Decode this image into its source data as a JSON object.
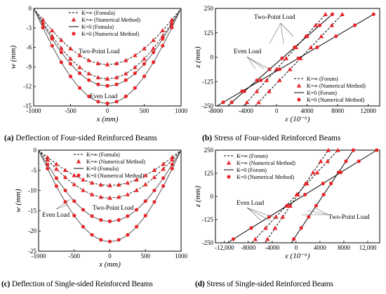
{
  "panels": [
    {
      "caption_letter": "(a)",
      "caption_text": " Deflection of Four-sided Reinforced Beams",
      "chart": "deflection",
      "xlabel": "x (mm)",
      "ylabel": "w (mm)",
      "xlim": [
        -1000,
        1000
      ],
      "ylim": [
        -15,
        0
      ],
      "xticks": [
        -1000,
        -500,
        0,
        500,
        1000
      ],
      "xticklabels": [
        "-1000",
        "-500",
        "0",
        "500",
        "1000"
      ],
      "yticks": [
        0,
        -3,
        -6,
        -9,
        -12,
        -15
      ],
      "yticklabels": [
        "0",
        "-3",
        "-6",
        "-9",
        "-12",
        "-15"
      ],
      "legend": [
        "K=∞ (Fomula)",
        "K=∞ (Numerical Method)",
        "K=0 (Fomula)",
        "K=0 (Numerical Method)"
      ],
      "annotations": [
        "Two-Point Load",
        "Even Load"
      ],
      "series": [
        {
          "stiffness": "inf",
          "method": "formula",
          "midspan": -8.6
        },
        {
          "stiffness": "inf",
          "method": "formula",
          "midspan": -10.8
        },
        {
          "stiffness": "0",
          "method": "formula",
          "midspan": -11.9
        },
        {
          "stiffness": "0",
          "method": "formula",
          "midspan": -14.6
        }
      ]
    },
    {
      "caption_letter": "(b)",
      "caption_text": " Stress of Four-sided Reinforced Beams",
      "chart": "stress",
      "xlabel": "ε (10⁻⁶)",
      "ylabel": "z (mm)",
      "xlim": [
        -8000,
        13500
      ],
      "ylim": [
        -250,
        250
      ],
      "xticks": [
        -8000,
        -4000,
        0,
        4000,
        8000,
        12000
      ],
      "xticklabels": [
        "-8000",
        "-4000",
        "0",
        "4000",
        "8000",
        "12000"
      ],
      "yticks": [
        250,
        125,
        0,
        -125,
        -250
      ],
      "yticklabels": [
        "250",
        "125",
        "0",
        "-125",
        "-250"
      ],
      "legend": [
        "K=∞ (Forum)",
        "K=∞ (Numerical Method)",
        "K=0 (Forum)",
        "K=0 (Numerical Method)"
      ],
      "annotations": [
        "Two-Point Load",
        "Even Load"
      ],
      "series": [
        {
          "stiffness": "inf",
          "ends": [
            [
              -4300,
              -250
            ],
            [
              6400,
              220
            ]
          ]
        },
        {
          "stiffness": "inf",
          "ends": [
            [
              -2800,
              -250
            ],
            [
              8600,
              220
            ]
          ]
        },
        {
          "stiffness": "0",
          "ends": [
            [
              -6400,
              -250
            ],
            [
              7300,
              220
            ]
          ]
        },
        {
          "stiffness": "0",
          "ends": [
            [
              -7800,
              -250
            ],
            [
              12700,
              220
            ]
          ]
        }
      ]
    },
    {
      "caption_letter": "(c)",
      "caption_text": " Deflection of Single-sided Reinforced Beams",
      "chart": "deflection",
      "xlabel": "x (mm)",
      "ylabel": "w (mm)",
      "xlim": [
        -1000,
        1000
      ],
      "ylim": [
        -25,
        0
      ],
      "xticks": [
        -1000,
        -500,
        0,
        500,
        1000
      ],
      "xticklabels": [
        "-1000",
        "-500",
        "0",
        "500",
        "1000"
      ],
      "yticks": [
        0,
        -5,
        -10,
        -15,
        -20,
        -25
      ],
      "yticklabels": [
        "0",
        "-5",
        "-10",
        "-15",
        "-20",
        "-25"
      ],
      "legend": [
        "K=∞ (Fomula)",
        "K=∞ (Numerical Method)",
        "K=0 (Fomula)",
        "K=0 (Numerical Method)"
      ],
      "annotations": [
        "Two-Point Load",
        "Even Load"
      ],
      "series": [
        {
          "stiffness": "inf",
          "method": "formula",
          "midspan": -8.7
        },
        {
          "stiffness": "inf",
          "method": "formula",
          "midspan": -11.8
        },
        {
          "stiffness": "0",
          "method": "formula",
          "midspan": -17.6
        },
        {
          "stiffness": "0",
          "method": "formula",
          "midspan": -22.6
        }
      ]
    },
    {
      "caption_letter": "(d)",
      "caption_text": " Stress of Single-sided Reinforced Beams",
      "chart": "stress",
      "xlabel": "ε (10⁻⁶)",
      "ylabel": "z (mm)",
      "xlim": [
        -13500,
        14000
      ],
      "ylim": [
        -250,
        250
      ],
      "xticks": [
        -12000,
        -8000,
        -4000,
        0,
        4000,
        8000,
        12000
      ],
      "xticklabels": [
        "-12,000",
        "-8000",
        "-4000",
        "0",
        "4000",
        "8000",
        "12,000"
      ],
      "yticks": [
        250,
        125,
        0,
        -125,
        -250
      ],
      "yticklabels": [
        "250",
        "125",
        "0",
        "-125",
        "-250"
      ],
      "legend": [
        "K=∞ (Forum)",
        "K=∞ (Numerical Method)",
        "K=0 (Forum)",
        "K=0 (Numerical Method)"
      ],
      "annotations": [
        "Even Load",
        "Two-Point Load"
      ],
      "series": [
        {
          "stiffness": "inf",
          "ends": [
            [
              -5200,
              -250
            ],
            [
              5400,
              250
            ]
          ]
        },
        {
          "stiffness": "inf",
          "ends": [
            [
              -7400,
              -250
            ],
            [
              7000,
              250
            ]
          ]
        },
        {
          "stiffness": "0",
          "ends": [
            [
              -800,
              -250
            ],
            [
              9600,
              250
            ]
          ]
        },
        {
          "stiffness": "0",
          "ends": [
            [
              -11500,
              -250
            ],
            [
              13500,
              250
            ]
          ]
        }
      ]
    }
  ],
  "chart_data": [
    {
      "type": "line",
      "title": "Deflection of Four-sided Reinforced Beams",
      "xlabel": "x (mm)",
      "ylabel": "w (mm)",
      "xlim": [
        -1000,
        1000
      ],
      "ylim": [
        -15,
        0
      ],
      "x": [
        -1000,
        -750,
        -500,
        -250,
        0,
        250,
        500,
        750,
        1000
      ],
      "series": [
        {
          "name": "K=∞ (Fomula)",
          "load": "Two-Point Load",
          "values": [
            0,
            -3.8,
            -6.5,
            -8.1,
            -8.6,
            -8.1,
            -6.5,
            -3.8,
            0
          ]
        },
        {
          "name": "K=∞ (Fomula)",
          "load": "Even Load",
          "values": [
            0,
            -4.7,
            -8.1,
            -10.2,
            -10.8,
            -10.2,
            -8.1,
            -4.7,
            0
          ]
        },
        {
          "name": "K=0 (Fomula)",
          "load": "Two-Point Load",
          "values": [
            0,
            -5.2,
            -8.9,
            -11.2,
            -11.9,
            -11.2,
            -8.9,
            -5.2,
            0
          ]
        },
        {
          "name": "K=0 (Fomula)",
          "load": "Even Load",
          "values": [
            0,
            -6.4,
            -11.0,
            -13.7,
            -14.6,
            -13.7,
            -11.0,
            -6.4,
            0
          ]
        }
      ]
    },
    {
      "type": "line",
      "title": "Stress of Four-sided Reinforced Beams",
      "xlabel": "ε (10⁻⁶)",
      "ylabel": "z (mm)",
      "xlim": [
        -8000,
        13500
      ],
      "ylim": [
        -250,
        250
      ],
      "series": [
        {
          "name": "K=∞ (Forum)",
          "x": [
            -4300,
            6400
          ],
          "y": [
            -250,
            220
          ]
        },
        {
          "name": "K=∞ (Forum)",
          "x": [
            -2800,
            8600
          ],
          "y": [
            -250,
            220
          ]
        },
        {
          "name": "K=0 (Forum)",
          "x": [
            -6400,
            7300
          ],
          "y": [
            -250,
            220
          ]
        },
        {
          "name": "K=0 (Forum)",
          "x": [
            -7800,
            12700
          ],
          "y": [
            -250,
            220
          ]
        }
      ]
    },
    {
      "type": "line",
      "title": "Deflection of Single-sided Reinforced Beams",
      "xlabel": "x (mm)",
      "ylabel": "w (mm)",
      "xlim": [
        -1000,
        1000
      ],
      "ylim": [
        -25,
        0
      ],
      "x": [
        -1000,
        -750,
        -500,
        -250,
        0,
        250,
        500,
        750,
        1000
      ],
      "series": [
        {
          "name": "K=∞ (Fomula)",
          "load": "Two-Point Load",
          "values": [
            0,
            -3.8,
            -6.5,
            -8.2,
            -8.7,
            -8.2,
            -6.5,
            -3.8,
            0
          ]
        },
        {
          "name": "K=∞ (Fomula)",
          "load": "Even Load",
          "values": [
            0,
            -5.2,
            -8.9,
            -11.1,
            -11.8,
            -11.1,
            -8.9,
            -5.2,
            0
          ]
        },
        {
          "name": "K=0 (Fomula)",
          "load": "Two-Point Load",
          "values": [
            0,
            -7.7,
            -13.2,
            -16.5,
            -17.6,
            -16.5,
            -13.2,
            -7.7,
            0
          ]
        },
        {
          "name": "K=0 (Fomula)",
          "load": "Even Load",
          "values": [
            0,
            -9.9,
            -17.0,
            -21.2,
            -22.6,
            -21.2,
            -17.0,
            -9.9,
            0
          ]
        }
      ]
    },
    {
      "type": "line",
      "title": "Stress of Single-sided Reinforced Beams",
      "xlabel": "ε (10⁻⁶)",
      "ylabel": "z (mm)",
      "xlim": [
        -13500,
        14000
      ],
      "ylim": [
        -250,
        250
      ],
      "series": [
        {
          "name": "K=∞ (Forum)",
          "x": [
            -5200,
            5400
          ],
          "y": [
            -250,
            250
          ]
        },
        {
          "name": "K=∞ (Forum)",
          "x": [
            -7400,
            7000
          ],
          "y": [
            -250,
            250
          ]
        },
        {
          "name": "K=0 (Forum)",
          "x": [
            -800,
            9600
          ],
          "y": [
            -250,
            250
          ]
        },
        {
          "name": "K=0 (Forum)",
          "x": [
            -11500,
            13500
          ],
          "y": [
            -250,
            250
          ]
        }
      ]
    }
  ]
}
